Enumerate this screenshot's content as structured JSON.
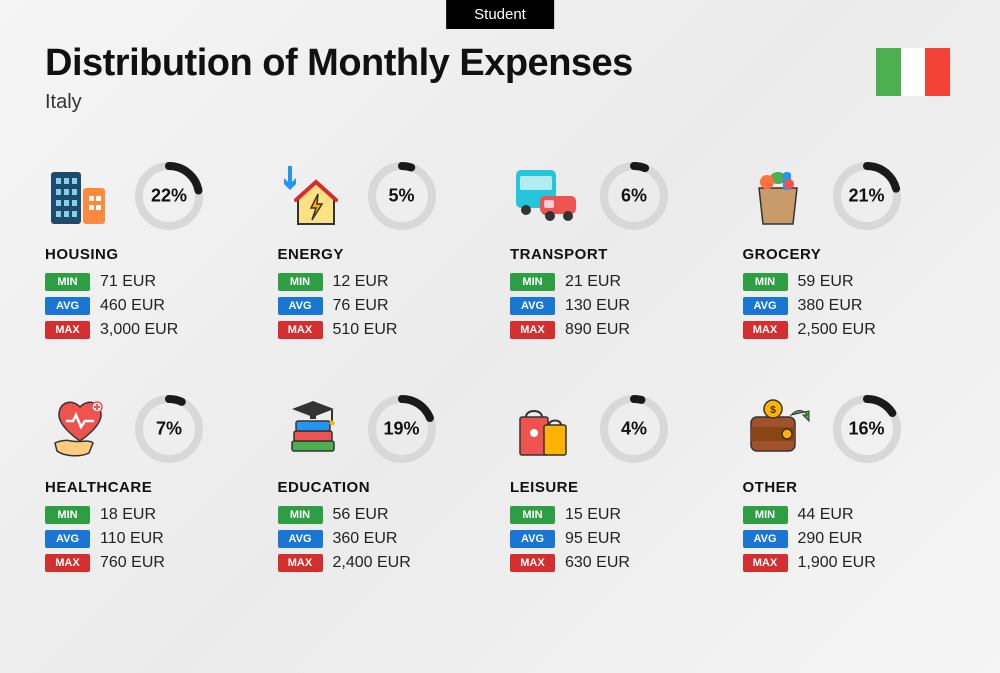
{
  "badge": "Student",
  "title": "Distribution of Monthly Expenses",
  "subtitle": "Italy",
  "flag": {
    "left": "#4caf50",
    "middle": "#ffffff",
    "right": "#f44336"
  },
  "ring": {
    "bg": "#d8d8d8",
    "fg": "#1a1a1a",
    "stroke_width": 8,
    "radius": 30
  },
  "tags": {
    "min": {
      "label": "MIN",
      "bg": "#2e9e44"
    },
    "avg": {
      "label": "AVG",
      "bg": "#1976d2"
    },
    "max": {
      "label": "MAX",
      "bg": "#d32f2f"
    }
  },
  "currency": "EUR",
  "categories": [
    {
      "key": "housing",
      "name": "HOUSING",
      "pct": 22,
      "min": "71",
      "avg": "460",
      "max": "3,000",
      "icon": "buildings"
    },
    {
      "key": "energy",
      "name": "ENERGY",
      "pct": 5,
      "min": "12",
      "avg": "76",
      "max": "510",
      "icon": "bolt-house"
    },
    {
      "key": "transport",
      "name": "TRANSPORT",
      "pct": 6,
      "min": "21",
      "avg": "130",
      "max": "890",
      "icon": "bus-car"
    },
    {
      "key": "grocery",
      "name": "GROCERY",
      "pct": 21,
      "min": "59",
      "avg": "380",
      "max": "2,500",
      "icon": "grocery-bag"
    },
    {
      "key": "healthcare",
      "name": "HEALTHCARE",
      "pct": 7,
      "min": "18",
      "avg": "110",
      "max": "760",
      "icon": "heart-hand"
    },
    {
      "key": "education",
      "name": "EDUCATION",
      "pct": 19,
      "min": "56",
      "avg": "360",
      "max": "2,400",
      "icon": "grad-books"
    },
    {
      "key": "leisure",
      "name": "LEISURE",
      "pct": 4,
      "min": "15",
      "avg": "95",
      "max": "630",
      "icon": "shopping-bags"
    },
    {
      "key": "other",
      "name": "OTHER",
      "pct": 16,
      "min": "44",
      "avg": "290",
      "max": "1,900",
      "icon": "wallet-arrow"
    }
  ]
}
